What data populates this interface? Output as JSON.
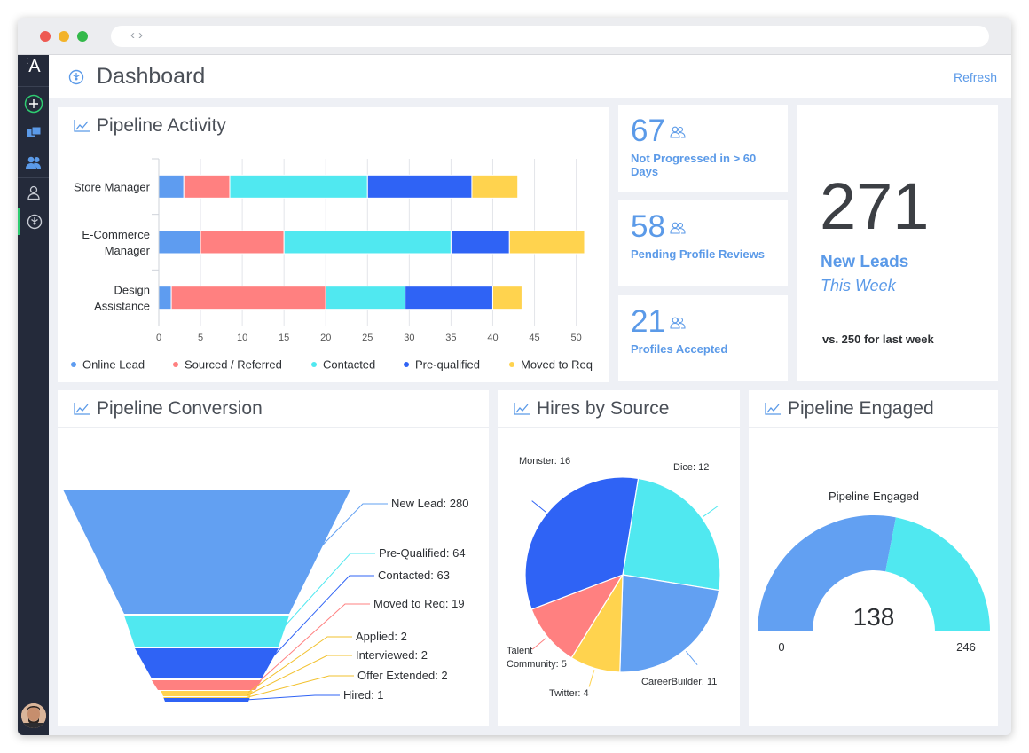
{
  "header": {
    "title": "Dashboard",
    "refresh_label": "Refresh"
  },
  "sidebar": {
    "logo": "A"
  },
  "pipeline_activity": {
    "title": "Pipeline Activity",
    "chart_data": {
      "type": "bar",
      "orientation": "horizontal",
      "stacked": true,
      "categories": [
        "Store Manager",
        "E-Commerce Manager",
        "Design Assistance"
      ],
      "category_lines": [
        [
          "Store Manager"
        ],
        [
          "E-Commerce",
          "Manager"
        ],
        [
          "Design",
          "Assistance"
        ]
      ],
      "series": [
        {
          "name": "Online Lead",
          "color": "#5e9cf0",
          "values": [
            3,
            5,
            1.5
          ]
        },
        {
          "name": "Sourced / Referred",
          "color": "#ff8080",
          "values": [
            5.5,
            10,
            18.5
          ]
        },
        {
          "name": "Contacted",
          "color": "#50e8f0",
          "values": [
            16.5,
            20,
            9.5
          ]
        },
        {
          "name": "Pre-qualified",
          "color": "#2f63f5",
          "values": [
            12.5,
            7,
            10.5
          ]
        },
        {
          "name": "Moved to Req",
          "color": "#ffd34e",
          "values": [
            5.5,
            9,
            3.5
          ]
        }
      ],
      "xticks": [
        "0",
        "5",
        "10",
        "15",
        "20",
        "25",
        "30",
        "35",
        "40",
        "45",
        "50"
      ],
      "xlim": [
        0,
        51
      ],
      "grid": true,
      "legend_position": "bottom"
    }
  },
  "stats": {
    "not_progressed": {
      "value": "67",
      "label_lines": [
        "Not Progressed in > 60",
        "Days"
      ]
    },
    "pending_reviews": {
      "value": "58",
      "label_lines": [
        "Pending Profile Reviews"
      ]
    },
    "profiles_accepted": {
      "value": "21",
      "label_lines": [
        "Profiles Accepted"
      ]
    }
  },
  "new_leads": {
    "value": "271",
    "label": "New Leads",
    "sublabel": "This Week",
    "comparison": "vs. 250 for last week"
  },
  "pipeline_conversion": {
    "title": "Pipeline Conversion",
    "chart_data": {
      "type": "funnel",
      "stages": [
        {
          "name": "New Lead",
          "value": 280,
          "label": "New Lead: 280",
          "color": "#62a0f2"
        },
        {
          "name": "Pre-Qualified",
          "value": 64,
          "label": "Pre-Qualified: 64",
          "color": "#50e8f0"
        },
        {
          "name": "Contacted",
          "value": 63,
          "label": "Contacted: 63",
          "color": "#2f63f5"
        },
        {
          "name": "Moved to Req",
          "value": 19,
          "label": "Moved to Req: 19",
          "color": "#ff8080"
        },
        {
          "name": "Applied",
          "value": 2,
          "label": "Applied: 2",
          "color": "#ffd34e"
        },
        {
          "name": "Interviewed",
          "value": 2,
          "label": "Interviewed: 2",
          "color": "#ffd34e"
        },
        {
          "name": "Offer Extended",
          "value": 2,
          "label": "Offer Extended: 2",
          "color": "#ffd34e"
        },
        {
          "name": "Hired",
          "value": 1,
          "label": "Hired: 1",
          "color": "#2f63f5"
        }
      ]
    }
  },
  "hires_by_source": {
    "title": "Hires by Source",
    "chart_data": {
      "type": "pie",
      "slices": [
        {
          "name": "Dice",
          "value": 12,
          "label": "Dice: 12",
          "color": "#50e8f0"
        },
        {
          "name": "CareerBuilder",
          "value": 11,
          "label": "CareerBuilder: 11",
          "color": "#62a0f2"
        },
        {
          "name": "Twitter",
          "value": 4,
          "label": "Twitter: 4",
          "color": "#ffd34e"
        },
        {
          "name": "Talent Community",
          "value": 5,
          "label_lines": [
            "Talent",
            "Community: 5"
          ],
          "color": "#ff8080"
        },
        {
          "name": "Monster",
          "value": 16,
          "label": "Monster: 16",
          "color": "#2f63f5"
        }
      ]
    }
  },
  "pipeline_engaged": {
    "title": "Pipeline Engaged",
    "chart_data": {
      "type": "gauge",
      "title": "Pipeline Engaged",
      "value": 138,
      "value_label": "138",
      "min": 0,
      "max": 246,
      "min_label": "0",
      "max_label": "246",
      "fill_color": "#62a0f2",
      "rest_color": "#50e8f0"
    }
  }
}
